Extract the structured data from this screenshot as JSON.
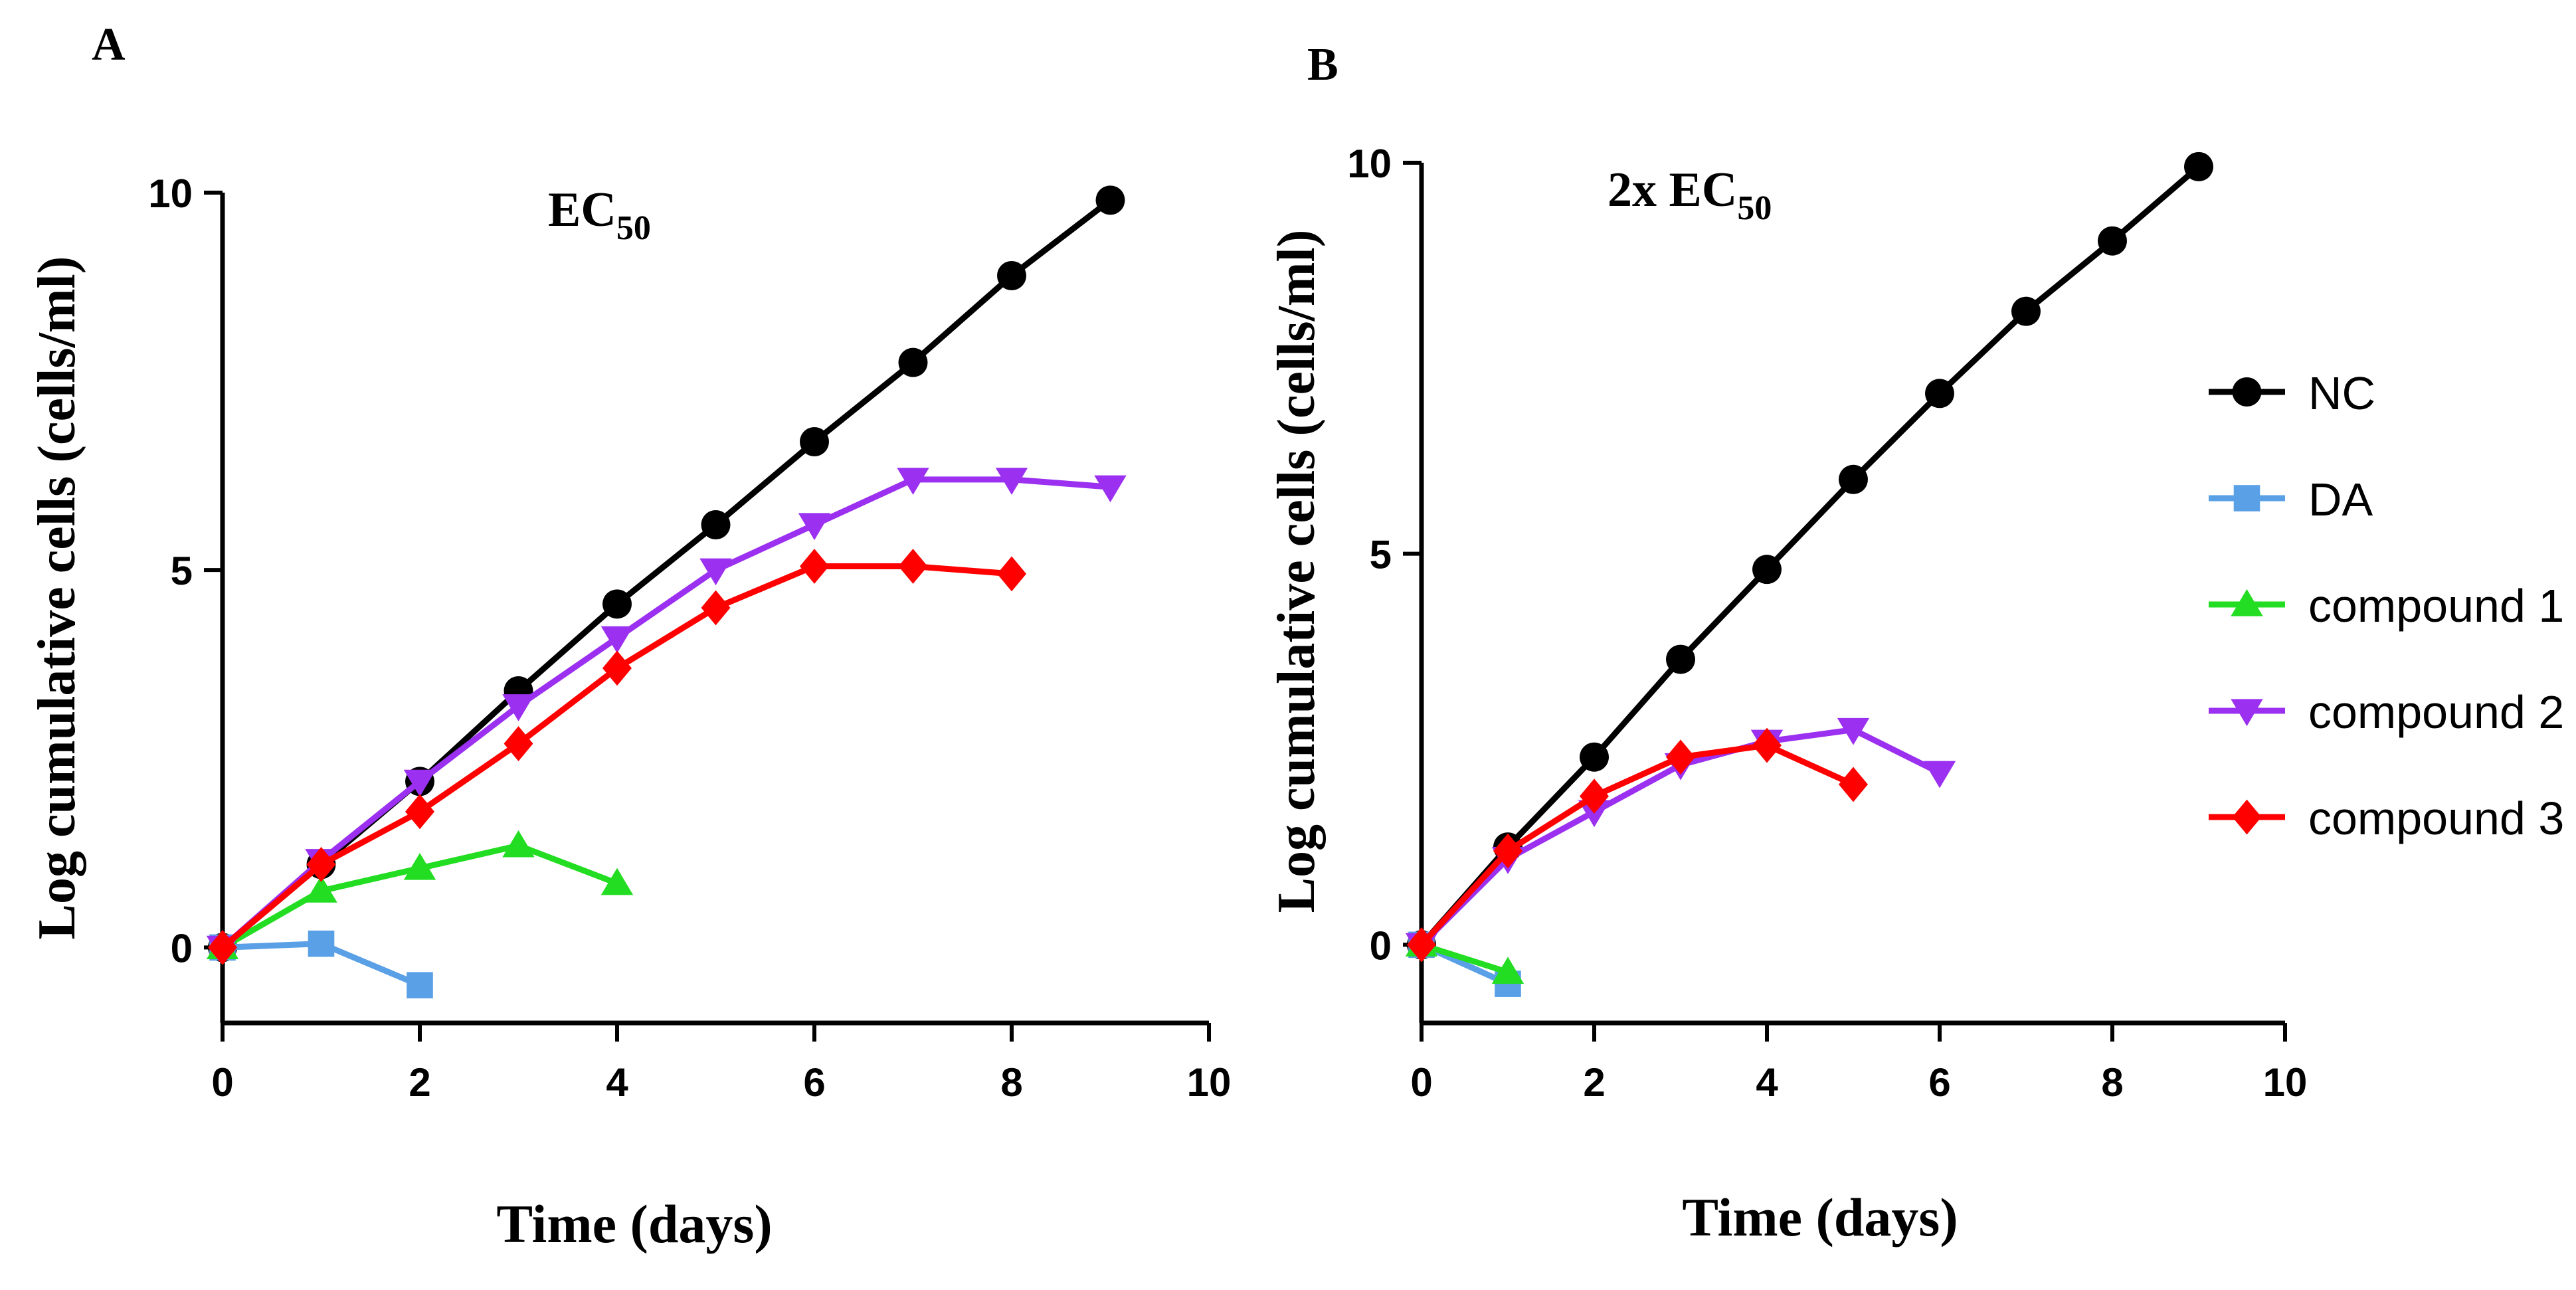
{
  "figure": {
    "legend": [
      {
        "name": "NC",
        "color": "#000000",
        "marker": "circle"
      },
      {
        "name": "DA",
        "color": "#5aa0e6",
        "marker": "square"
      },
      {
        "name": "compound 1",
        "color": "#22dd22",
        "marker": "triangle-up"
      },
      {
        "name": "compound 2",
        "color": "#9b30f0",
        "marker": "triangle-down"
      },
      {
        "name": "compound 3",
        "color": "#ff0000",
        "marker": "diamond"
      }
    ]
  },
  "chart_data": [
    {
      "type": "line",
      "panel_label": "A",
      "title_main": "EC",
      "title_sub": "50",
      "xlabel": "Time (days)",
      "ylabel": "Log cumulative cells (cells/ml)",
      "xlim": [
        0,
        10
      ],
      "ylim": [
        -1,
        10
      ],
      "xticks": [
        "0",
        "2",
        "4",
        "6",
        "8",
        "10"
      ],
      "yticks": [
        "0",
        "5",
        "10"
      ],
      "series": [
        {
          "name": "NC",
          "x": [
            0,
            1,
            2,
            3,
            4,
            5,
            6,
            7,
            8,
            9
          ],
          "y": [
            0,
            1.1,
            2.2,
            3.4,
            4.55,
            5.6,
            6.7,
            7.75,
            8.9,
            9.9
          ]
        },
        {
          "name": "DA",
          "x": [
            0,
            1,
            2
          ],
          "y": [
            0,
            0.05,
            -0.5
          ]
        },
        {
          "name": "compound 1",
          "x": [
            0,
            1,
            2,
            3,
            4
          ],
          "y": [
            0,
            0.75,
            1.05,
            1.35,
            0.85
          ]
        },
        {
          "name": "compound 2",
          "x": [
            0,
            1,
            2,
            3,
            4,
            5,
            6,
            7,
            8,
            9
          ],
          "y": [
            0,
            1.15,
            2.2,
            3.2,
            4.1,
            5.0,
            5.6,
            6.2,
            6.2,
            6.1
          ]
        },
        {
          "name": "compound 3",
          "x": [
            0,
            1,
            2,
            3,
            4,
            5,
            6,
            7,
            8
          ],
          "y": [
            0,
            1.1,
            1.8,
            2.7,
            3.7,
            4.5,
            5.05,
            5.05,
            4.95
          ]
        }
      ]
    },
    {
      "type": "line",
      "panel_label": "B",
      "title_main": "2x EC",
      "title_sub": "50",
      "xlabel": "Time (days)",
      "ylabel": "Log cumulative cells (cells/ml)",
      "xlim": [
        0,
        10
      ],
      "ylim": [
        -1,
        10
      ],
      "xticks": [
        "0",
        "2",
        "4",
        "6",
        "8",
        "10"
      ],
      "yticks": [
        "0",
        "5",
        "10"
      ],
      "series": [
        {
          "name": "NC",
          "x": [
            0,
            1,
            2,
            3,
            4,
            5,
            6,
            7,
            8,
            9
          ],
          "y": [
            0,
            1.25,
            2.4,
            3.65,
            4.8,
            5.95,
            7.05,
            8.1,
            9.0,
            9.95
          ]
        },
        {
          "name": "DA",
          "x": [
            0,
            1
          ],
          "y": [
            0,
            -0.5
          ]
        },
        {
          "name": "compound 1",
          "x": [
            0,
            1
          ],
          "y": [
            0,
            -0.35
          ]
        },
        {
          "name": "compound 2",
          "x": [
            0,
            1,
            2,
            3,
            4,
            5,
            6
          ],
          "y": [
            0,
            1.1,
            1.7,
            2.3,
            2.6,
            2.75,
            2.2
          ]
        },
        {
          "name": "compound 3",
          "x": [
            0,
            1,
            2,
            3,
            4,
            5
          ],
          "y": [
            0,
            1.2,
            1.9,
            2.4,
            2.55,
            2.05
          ]
        }
      ]
    }
  ]
}
